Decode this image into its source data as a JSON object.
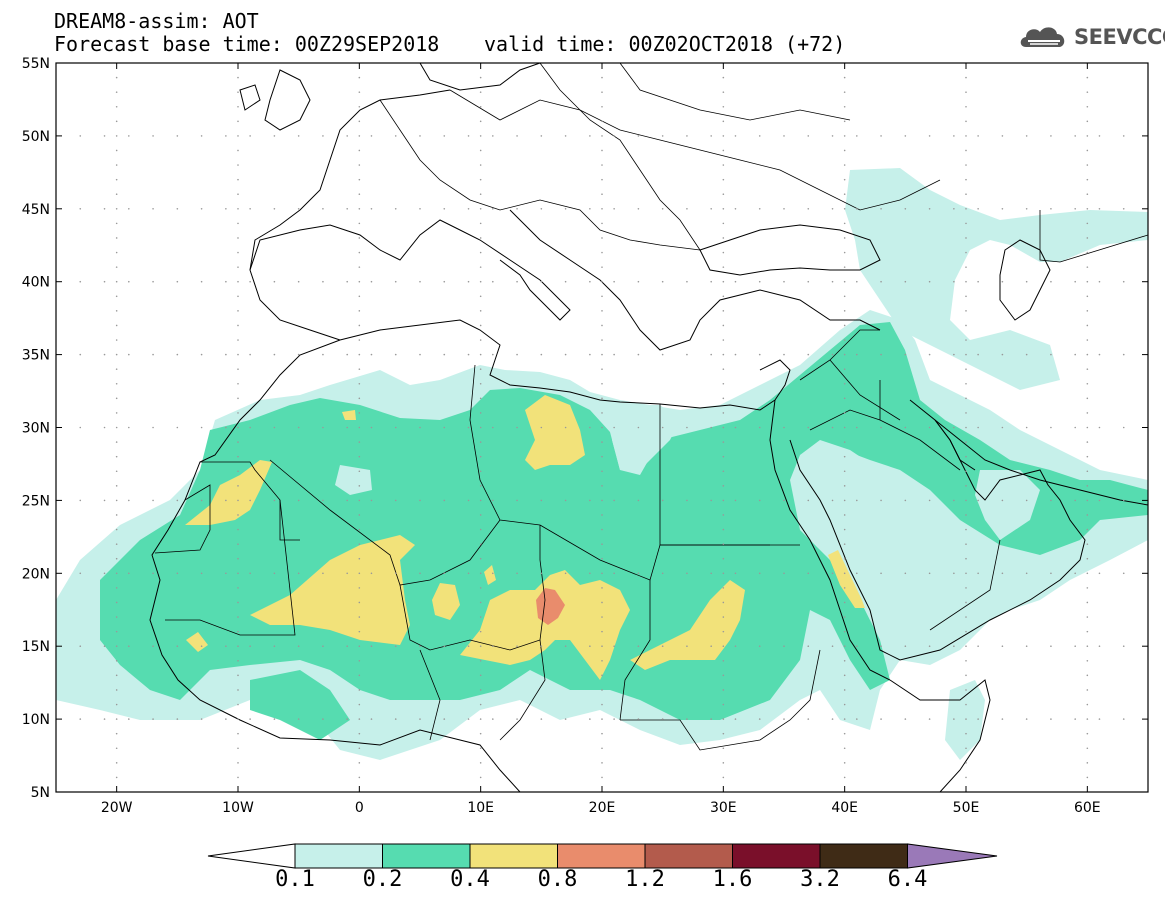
{
  "header": {
    "line1": "DREAM8-assim: AOT",
    "line2_base": "Forecast base time: 00Z29SEP2018",
    "line2_valid": "valid time: 00Z02OCT2018 (+72)"
  },
  "logo": {
    "text": "SEEVCCC",
    "icon": "cloud-icon"
  },
  "map": {
    "lat_labels": [
      "55N",
      "50N",
      "45N",
      "40N",
      "35N",
      "30N",
      "25N",
      "20N",
      "15N",
      "10N",
      "5N"
    ],
    "lon_labels": [
      "20W",
      "10W",
      "0",
      "10E",
      "20E",
      "30E",
      "40E",
      "50E",
      "60E"
    ],
    "lon_range": [
      -25,
      65
    ],
    "lat_range": [
      5,
      55
    ]
  },
  "colorbar": {
    "labels": [
      "0.1",
      "0.2",
      "0.4",
      "0.8",
      "1.2",
      "1.6",
      "3.2",
      "6.4"
    ],
    "colors": [
      "#ffffff",
      "#c6f0ea",
      "#56dcb0",
      "#f2e27a",
      "#e98c6c",
      "#b35b4c",
      "#7a0f2a",
      "#3f2b16",
      "#9a79b8"
    ]
  },
  "aot_colors": {
    "c01": "#c6f0ea",
    "c02": "#56dcb0",
    "c04": "#f2e27a",
    "c08": "#e98c6c",
    "c12": "#d16a5c"
  }
}
